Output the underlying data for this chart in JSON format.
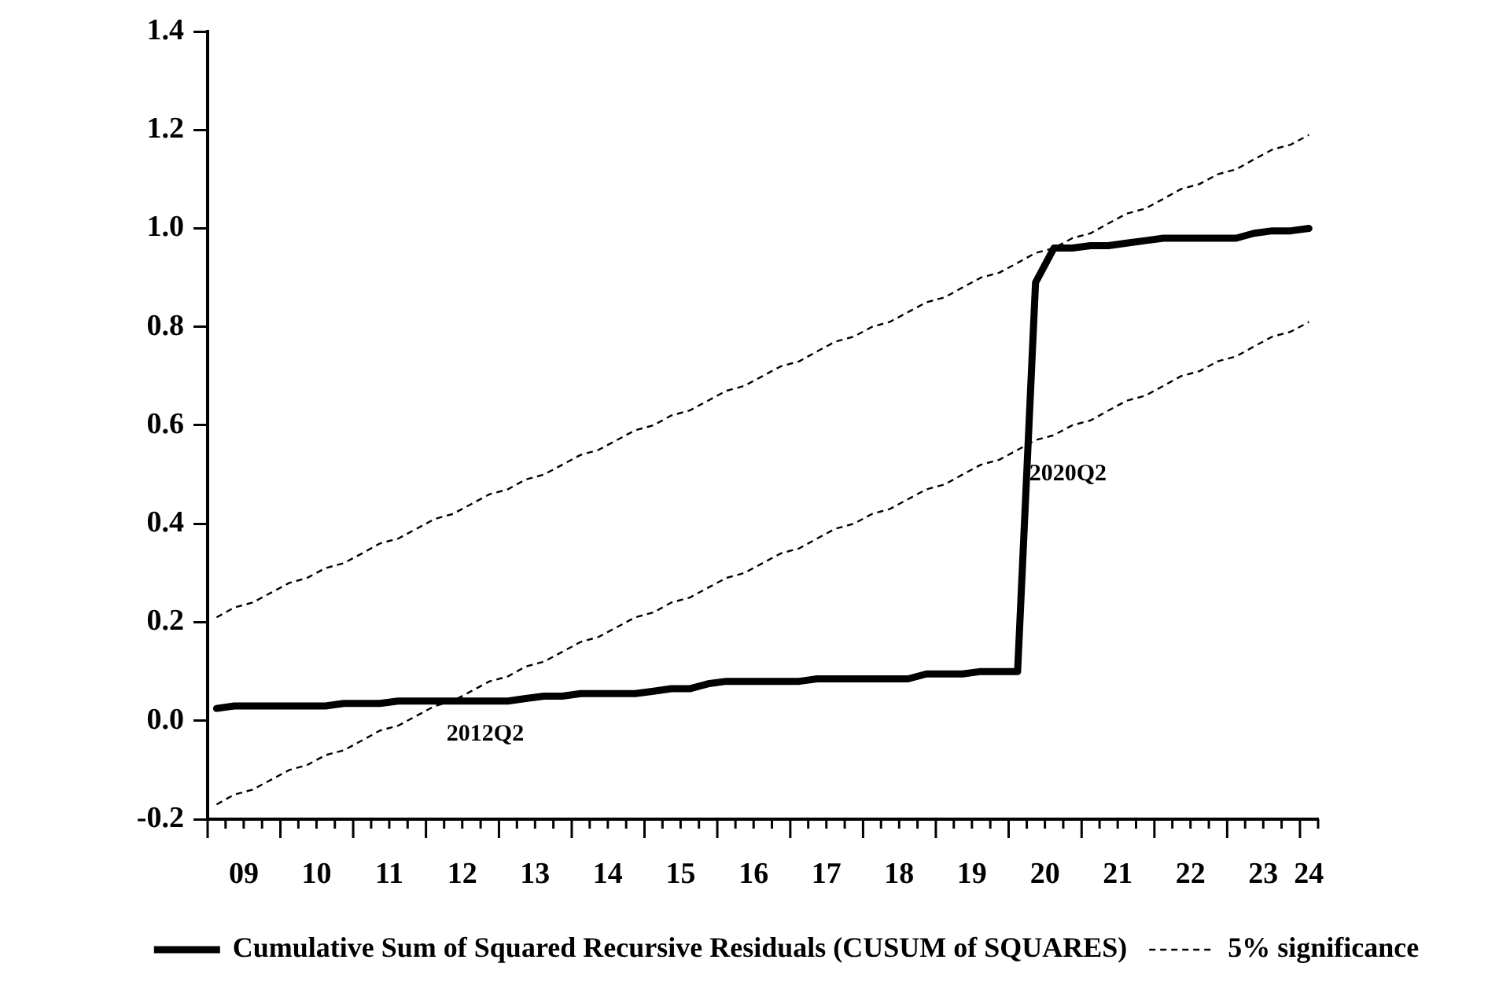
{
  "chart_data": {
    "type": "line",
    "x": [
      "2009-02-15",
      "2009-05-15",
      "2009-08-15",
      "2009-11-15",
      "2010-02-15",
      "2010-05-15",
      "2010-08-15",
      "2010-11-15",
      "2011-02-15",
      "2011-05-15",
      "2011-08-15",
      "2011-11-15",
      "2012-02-15",
      "2012-05-15",
      "2012-08-15",
      "2012-11-15",
      "2013-02-15",
      "2013-05-15",
      "2013-08-15",
      "2013-11-15",
      "2014-02-15",
      "2014-05-15",
      "2014-08-15",
      "2014-11-15",
      "2015-02-15",
      "2015-05-15",
      "2015-08-15",
      "2015-11-15",
      "2016-02-15",
      "2016-05-15",
      "2016-08-15",
      "2016-11-15",
      "2017-02-15",
      "2017-05-15",
      "2017-08-15",
      "2017-11-15",
      "2018-02-15",
      "2018-05-15",
      "2018-08-15",
      "2018-11-15",
      "2019-02-15",
      "2019-05-15",
      "2019-08-15",
      "2019-11-15",
      "2020-02-15",
      "2020-05-15",
      "2020-08-15",
      "2020-11-15",
      "2021-02-15",
      "2021-05-15",
      "2021-08-15",
      "2021-11-15",
      "2022-02-15",
      "2022-05-15",
      "2022-08-15",
      "2022-11-15",
      "2023-02-15",
      "2023-05-15",
      "2023-08-15",
      "2023-11-15",
      "2024-02-15"
    ],
    "xlim": [
      "2009-01",
      "2024-04"
    ],
    "xticks": [
      {
        "value": "2009-01",
        "label": null
      },
      {
        "value": "2009-04",
        "label": null
      },
      {
        "value": "2009-07",
        "label": "09"
      },
      {
        "value": "2009-10",
        "label": null
      },
      {
        "value": "2010-01",
        "label": null
      },
      {
        "value": "2010-04",
        "label": null
      },
      {
        "value": "2010-07",
        "label": "10"
      },
      {
        "value": "2010-10",
        "label": null
      },
      {
        "value": "2011-01",
        "label": null
      },
      {
        "value": "2011-04",
        "label": null
      },
      {
        "value": "2011-07",
        "label": "11"
      },
      {
        "value": "2011-10",
        "label": null
      },
      {
        "value": "2012-01",
        "label": null
      },
      {
        "value": "2012-04",
        "label": null
      },
      {
        "value": "2012-07",
        "label": "12"
      },
      {
        "value": "2012-10",
        "label": null
      },
      {
        "value": "2013-01",
        "label": null
      },
      {
        "value": "2013-04",
        "label": null
      },
      {
        "value": "2013-07",
        "label": "13"
      },
      {
        "value": "2013-10",
        "label": null
      },
      {
        "value": "2014-01",
        "label": null
      },
      {
        "value": "2014-04",
        "label": null
      },
      {
        "value": "2014-07",
        "label": "14"
      },
      {
        "value": "2014-10",
        "label": null
      },
      {
        "value": "2015-01",
        "label": null
      },
      {
        "value": "2015-04",
        "label": null
      },
      {
        "value": "2015-07",
        "label": "15"
      },
      {
        "value": "2015-10",
        "label": null
      },
      {
        "value": "2016-01",
        "label": null
      },
      {
        "value": "2016-04",
        "label": null
      },
      {
        "value": "2016-07",
        "label": "16"
      },
      {
        "value": "2016-10",
        "label": null
      },
      {
        "value": "2017-01",
        "label": null
      },
      {
        "value": "2017-04",
        "label": null
      },
      {
        "value": "2017-07",
        "label": "17"
      },
      {
        "value": "2017-10",
        "label": null
      },
      {
        "value": "2018-01",
        "label": null
      },
      {
        "value": "2018-04",
        "label": null
      },
      {
        "value": "2018-07",
        "label": "18"
      },
      {
        "value": "2018-10",
        "label": null
      },
      {
        "value": "2019-01",
        "label": null
      },
      {
        "value": "2019-04",
        "label": null
      },
      {
        "value": "2019-07",
        "label": "19"
      },
      {
        "value": "2019-10",
        "label": null
      },
      {
        "value": "2020-01",
        "label": null
      },
      {
        "value": "2020-04",
        "label": null
      },
      {
        "value": "2020-07",
        "label": "20"
      },
      {
        "value": "2020-10",
        "label": null
      },
      {
        "value": "2021-01",
        "label": null
      },
      {
        "value": "2021-04",
        "label": null
      },
      {
        "value": "2021-07",
        "label": "21"
      },
      {
        "value": "2021-10",
        "label": null
      },
      {
        "value": "2022-01",
        "label": null
      },
      {
        "value": "2022-04",
        "label": null
      },
      {
        "value": "2022-07",
        "label": "22"
      },
      {
        "value": "2022-10",
        "label": null
      },
      {
        "value": "2023-01",
        "label": null
      },
      {
        "value": "2023-04",
        "label": null
      },
      {
        "value": "2023-07",
        "label": "23"
      },
      {
        "value": "2023-10",
        "label": null
      },
      {
        "value": "2024-01",
        "label": null
      },
      {
        "value": "2024-02-15",
        "label": "24"
      },
      {
        "value": "2024-04",
        "label": null
      }
    ],
    "ylim": [
      -0.2,
      1.4
    ],
    "yticks": [
      -0.2,
      {
        "value": 0,
        "label": "0.0"
      },
      0.2,
      0.4,
      0.6,
      0.8,
      {
        "value": 1,
        "label": "1.0"
      },
      1.2,
      1.4
    ],
    "series": [
      {
        "name": "Cumulative Sum of Squared Recursive Residuals (CUSUM of SQUARES)",
        "color": "#000000",
        "line_style": "solid",
        "values": [
          0.025,
          0.03,
          0.03,
          0.03,
          0.03,
          0.03,
          0.03,
          0.035,
          0.035,
          0.035,
          0.04,
          0.04,
          0.04,
          0.04,
          0.04,
          0.04,
          0.04,
          0.045,
          0.05,
          0.05,
          0.055,
          0.055,
          0.055,
          0.055,
          0.06,
          0.065,
          0.065,
          0.075,
          0.08,
          0.08,
          0.08,
          0.08,
          0.08,
          0.085,
          0.085,
          0.085,
          0.085,
          0.085,
          0.085,
          0.095,
          0.095,
          0.095,
          0.1,
          0.1,
          0.1,
          0.89,
          0.96,
          0.96,
          0.965,
          0.965,
          0.97,
          0.975,
          0.98,
          0.98,
          0.98,
          0.98,
          0.98,
          0.99,
          0.995,
          0.995,
          1.0
        ]
      },
      {
        "name": "5% significance",
        "color": "#000000",
        "line_style": "dashed",
        "values": [
          0.21,
          0.23,
          0.24,
          0.26,
          0.28,
          0.29,
          0.31,
          0.32,
          0.34,
          0.36,
          0.37,
          0.39,
          0.41,
          0.42,
          0.44,
          0.46,
          0.47,
          0.49,
          0.5,
          0.52,
          0.54,
          0.55,
          0.57,
          0.59,
          0.6,
          0.62,
          0.63,
          0.65,
          0.67,
          0.68,
          0.7,
          0.72,
          0.73,
          0.75,
          0.77,
          0.78,
          0.8,
          0.81,
          0.83,
          0.85,
          0.86,
          0.88,
          0.9,
          0.91,
          0.93,
          0.95,
          0.96,
          0.98,
          0.99,
          1.01,
          1.03,
          1.04,
          1.06,
          1.08,
          1.09,
          1.11,
          1.12,
          1.14,
          1.16,
          1.17,
          1.19
        ]
      },
      {
        "color": "#000000",
        "line_style": "dashed",
        "values": [
          -0.17,
          -0.15,
          -0.14,
          -0.12,
          -0.1,
          -0.09,
          -0.07,
          -0.06,
          -0.04,
          -0.02,
          -0.01,
          0.01,
          0.03,
          0.04,
          0.06,
          0.08,
          0.09,
          0.11,
          0.12,
          0.14,
          0.16,
          0.17,
          0.19,
          0.21,
          0.22,
          0.24,
          0.25,
          0.27,
          0.29,
          0.3,
          0.32,
          0.34,
          0.35,
          0.37,
          0.39,
          0.4,
          0.42,
          0.43,
          0.45,
          0.47,
          0.48,
          0.5,
          0.52,
          0.53,
          0.55,
          0.57,
          0.58,
          0.6,
          0.61,
          0.63,
          0.65,
          0.66,
          0.68,
          0.7,
          0.71,
          0.73,
          0.74,
          0.76,
          0.78,
          0.79,
          0.81
        ]
      }
    ],
    "annotations": [
      {
        "text": "2012Q2",
        "x": "2012-05-15",
        "y": 0.04
      },
      {
        "text": "2020Q2",
        "x": "2020-05-15",
        "y": 0.57
      }
    ],
    "legend": "bottom"
  }
}
